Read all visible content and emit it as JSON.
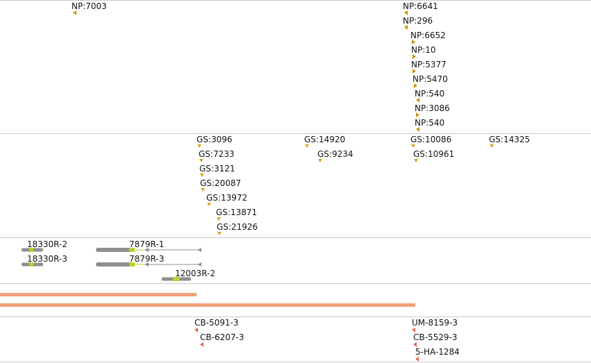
{
  "colors": {
    "divider": "#c9c9c9",
    "np_marker": "#c8960f",
    "gs_marker": "#dba420",
    "cb_marker": "#e3694a",
    "gene_body": "#8f8f8f",
    "gene_exon": "#b9d32a",
    "orange_bar": "#f2a07a"
  },
  "tracks": {
    "np": [
      {
        "label": "NP:7003",
        "pos": 105,
        "row": 0,
        "dir": "left"
      },
      {
        "label": "NP:6641",
        "pos": 582,
        "row": 0,
        "dir": "left"
      },
      {
        "label": "NP:296",
        "pos": 582,
        "row": 1,
        "dir": "left"
      },
      {
        "label": "NP:6652",
        "pos": 593,
        "row": 2,
        "dir": "right"
      },
      {
        "label": "NP:10",
        "pos": 594,
        "row": 3,
        "dir": "right"
      },
      {
        "label": "NP:5377",
        "pos": 594,
        "row": 4,
        "dir": "right"
      },
      {
        "label": "NP:5470",
        "pos": 596,
        "row": 5,
        "dir": "right"
      },
      {
        "label": "NP:540",
        "pos": 599,
        "row": 6,
        "dir": "left"
      },
      {
        "label": "NP:3086",
        "pos": 599,
        "row": 7,
        "dir": "right"
      },
      {
        "label": "NP:540",
        "pos": 599,
        "row": 8,
        "dir": "left"
      }
    ],
    "gs": [
      {
        "label": "GS:3096",
        "pos": 287,
        "row": 0
      },
      {
        "label": "GS:7233",
        "pos": 290,
        "row": 1
      },
      {
        "label": "GS:3121",
        "pos": 291,
        "row": 2
      },
      {
        "label": "GS:20087",
        "pos": 292,
        "row": 3
      },
      {
        "label": "GS:13972",
        "pos": 301,
        "row": 4
      },
      {
        "label": "GS:13871",
        "pos": 315,
        "row": 5
      },
      {
        "label": "GS:21926",
        "pos": 316,
        "row": 6
      },
      {
        "label": "GS:14920",
        "pos": 442,
        "row": 0
      },
      {
        "label": "GS:9234",
        "pos": 461,
        "row": 1
      },
      {
        "label": "GS:10086",
        "pos": 595,
        "row": 0
      },
      {
        "label": "GS:10961",
        "pos": 599,
        "row": 1
      },
      {
        "label": "GS:14325",
        "pos": 708,
        "row": 0
      }
    ],
    "genes": [
      {
        "label": "18330R-2",
        "start": 31,
        "end": 62,
        "row": 0,
        "exons": [
          [
            42,
            48
          ]
        ]
      },
      {
        "label": "18330R-3",
        "start": 31,
        "end": 62,
        "row": 1,
        "exons": [
          [
            42,
            48
          ]
        ]
      },
      {
        "label": "7879R-1",
        "start": 138,
        "end": 290,
        "row": 0,
        "thick_end": 194,
        "exons": [
          [
            186,
            194
          ]
        ]
      },
      {
        "label": "7879R-3",
        "start": 138,
        "end": 290,
        "row": 1,
        "thick_end": 194,
        "exons": [
          [
            186,
            194
          ]
        ]
      },
      {
        "label": "12003R-2",
        "start": 233,
        "end": 275,
        "row": 2,
        "exons": [
          [
            249,
            259
          ]
        ]
      }
    ],
    "bars": [
      {
        "start": 0,
        "end": 283,
        "row": 0
      },
      {
        "start": 0,
        "end": 598,
        "row": 1
      }
    ],
    "cb": [
      {
        "label": "CB-5091-3",
        "pos": 282,
        "row": 0
      },
      {
        "label": "CB-6207-3",
        "pos": 290,
        "row": 1
      },
      {
        "label": "UM-8159-3",
        "pos": 595,
        "row": 0
      },
      {
        "label": "CB-5529-3",
        "pos": 597,
        "row": 1
      },
      {
        "label": "5-HA-1284",
        "pos": 600,
        "row": 2
      }
    ]
  }
}
